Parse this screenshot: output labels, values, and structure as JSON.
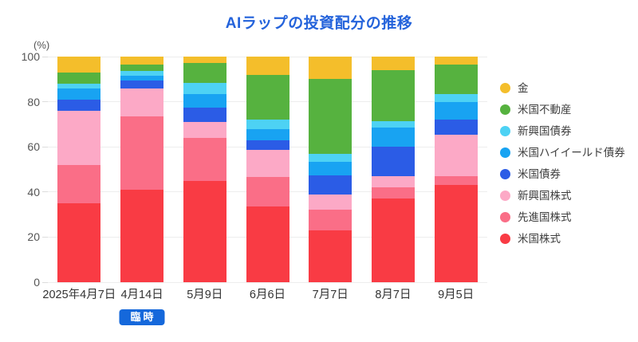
{
  "colors": {
    "title": "#2463DB",
    "badge_bg": "#1568DB",
    "badge_text": "#FFFFFF",
    "grid": "#EDEDED",
    "axis_text": "#555555",
    "category_text": "#333333",
    "background": "#FFFFFF"
  },
  "chart_data": {
    "type": "bar",
    "subtype": "stacked-vertical",
    "title": "AIラップの投資配分の推移",
    "unit_label": "(%)",
    "xlabel": "",
    "ylabel": "(%)",
    "ylim": [
      0,
      100
    ],
    "yticks": [
      0,
      20,
      40,
      60,
      80,
      100
    ],
    "grid": true,
    "legend_position": "right",
    "categories": [
      "2025年4月7日",
      "4月14日",
      "5月9日",
      "6月6日",
      "7月7日",
      "8月7日",
      "9月5日"
    ],
    "category_badges": [
      {
        "category_index": 1,
        "label": "臨時"
      }
    ],
    "series_bottom_to_top": [
      {
        "name": "米国株式",
        "color": "#F93B44",
        "values": [
          35,
          41,
          45,
          33.5,
          23,
          37,
          43
        ]
      },
      {
        "name": "先進国株式",
        "color": "#FA6E87",
        "values": [
          17,
          32.5,
          19,
          13,
          9,
          5,
          4
        ]
      },
      {
        "name": "新興国株式",
        "color": "#FCA9C6",
        "values": [
          24,
          12.5,
          7,
          12,
          7,
          5,
          18.5
        ]
      },
      {
        "name": "米国債券",
        "color": "#2B5CE6",
        "values": [
          5,
          3.5,
          6.5,
          4.5,
          8.5,
          13,
          6.5
        ]
      },
      {
        "name": "米国ハイイールド債券",
        "color": "#18A3F2",
        "values": [
          5,
          2,
          6,
          5,
          6,
          8.5,
          8
        ]
      },
      {
        "name": "新興国債券",
        "color": "#4DD2F4",
        "values": [
          2,
          2,
          5,
          4,
          3.5,
          3,
          3.5
        ]
      },
      {
        "name": "米国不動産",
        "color": "#56B23F",
        "values": [
          5,
          3,
          8.5,
          20,
          33,
          22.5,
          13
        ]
      },
      {
        "name": "金",
        "color": "#F4BE2B",
        "values": [
          7,
          3.5,
          3,
          8,
          10,
          6,
          3.5
        ]
      }
    ]
  }
}
